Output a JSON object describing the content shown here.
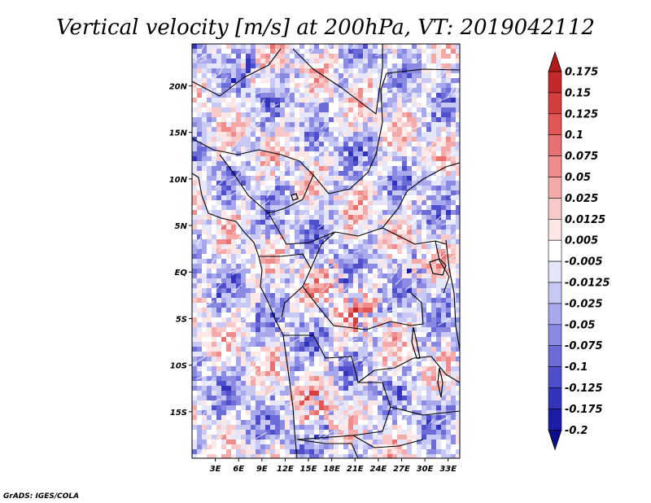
{
  "title": "Vertical velocity [m/s] at 200hPa, VT: 2019042112",
  "credit": "GrADS: IGES/COLA",
  "map": {
    "lon_range": [
      0,
      34.5
    ],
    "lat_range": [
      -20,
      24.5
    ],
    "lat_labels": [
      {
        "label": "20N",
        "lat": 20
      },
      {
        "label": "15N",
        "lat": 15
      },
      {
        "label": "10N",
        "lat": 10
      },
      {
        "label": "5N",
        "lat": 5
      },
      {
        "label": "EQ",
        "lat": 0
      },
      {
        "label": "5S",
        "lat": -5
      },
      {
        "label": "10S",
        "lat": -10
      },
      {
        "label": "15S",
        "lat": -15
      }
    ],
    "lon_labels": [
      {
        "label": "3E",
        "lon": 3
      },
      {
        "label": "6E",
        "lon": 6
      },
      {
        "label": "9E",
        "lon": 9
      },
      {
        "label": "12E",
        "lon": 12
      },
      {
        "label": "15E",
        "lon": 15
      },
      {
        "label": "18E",
        "lon": 18
      },
      {
        "label": "21E",
        "lon": 21
      },
      {
        "label": "24E",
        "lon": 24
      },
      {
        "label": "27E",
        "lon": 27
      },
      {
        "label": "30E",
        "lon": 30
      },
      {
        "label": "33E",
        "lon": 33
      }
    ]
  },
  "colorbar": {
    "labels": [
      "0.175",
      "0.15",
      "0.125",
      "0.1",
      "0.075",
      "0.05",
      "0.025",
      "0.0125",
      "0.005",
      "-0.005",
      "-0.0125",
      "-0.025",
      "-0.05",
      "-0.075",
      "-0.1",
      "-0.125",
      "-0.175",
      "-0.2"
    ],
    "colors": [
      "#b01a1a",
      "#c42828",
      "#d53e3e",
      "#e25656",
      "#e87070",
      "#ef8c8c",
      "#f5aaaa",
      "#f9c8c8",
      "#fce6e6",
      "#ffffff",
      "#e6e6fb",
      "#c8c8f4",
      "#a8a8ec",
      "#8a8ae2",
      "#6c6cd8",
      "#4f4fcb",
      "#3434bb",
      "#1c1ca8",
      "#0c0c90"
    ]
  }
}
